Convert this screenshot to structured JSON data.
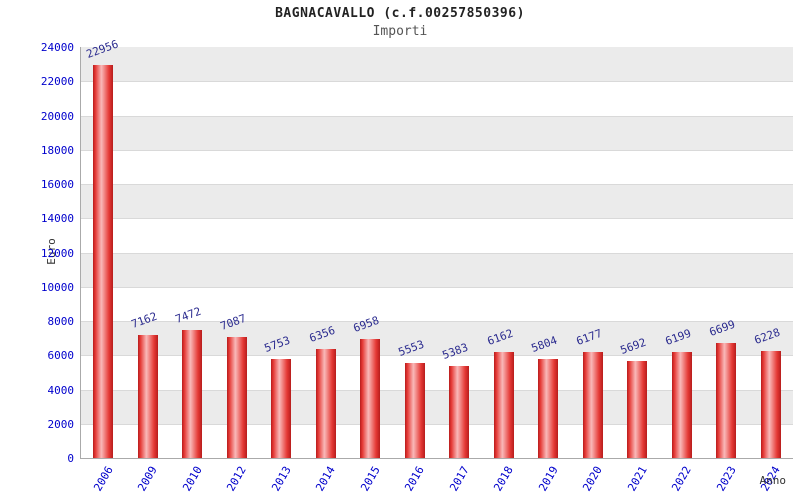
{
  "title": "BAGNACAVALLO (c.f.00257850396)",
  "subtitle": "Importi",
  "chart_data": {
    "type": "bar",
    "categories": [
      "2006",
      "2009",
      "2010",
      "2012",
      "2013",
      "2014",
      "2015",
      "2016",
      "2017",
      "2018",
      "2019",
      "2020",
      "2021",
      "2022",
      "2023",
      "2024"
    ],
    "values": [
      22956,
      7162,
      7472,
      7087,
      5753,
      6356,
      6958,
      5553,
      5383,
      6162,
      5804,
      6177,
      5692,
      6199,
      6699,
      6228
    ],
    "title": "BAGNACAVALLO (c.f.00257850396)",
    "subtitle": "Importi",
    "xlabel": "Anno",
    "ylabel": "Euro",
    "ylim": [
      0,
      24000
    ],
    "ytick_step": 2000,
    "grid": true,
    "legend": "none",
    "bar_color": "#e53935",
    "bar_highlight_color": "#f9b9b9",
    "bar_edge_color": "#b71c1c",
    "value_label_color": "#2b2b8f",
    "tick_label_color": "#0000cc",
    "band_color_a": "#ebebeb",
    "band_color_b": "#ffffff"
  }
}
